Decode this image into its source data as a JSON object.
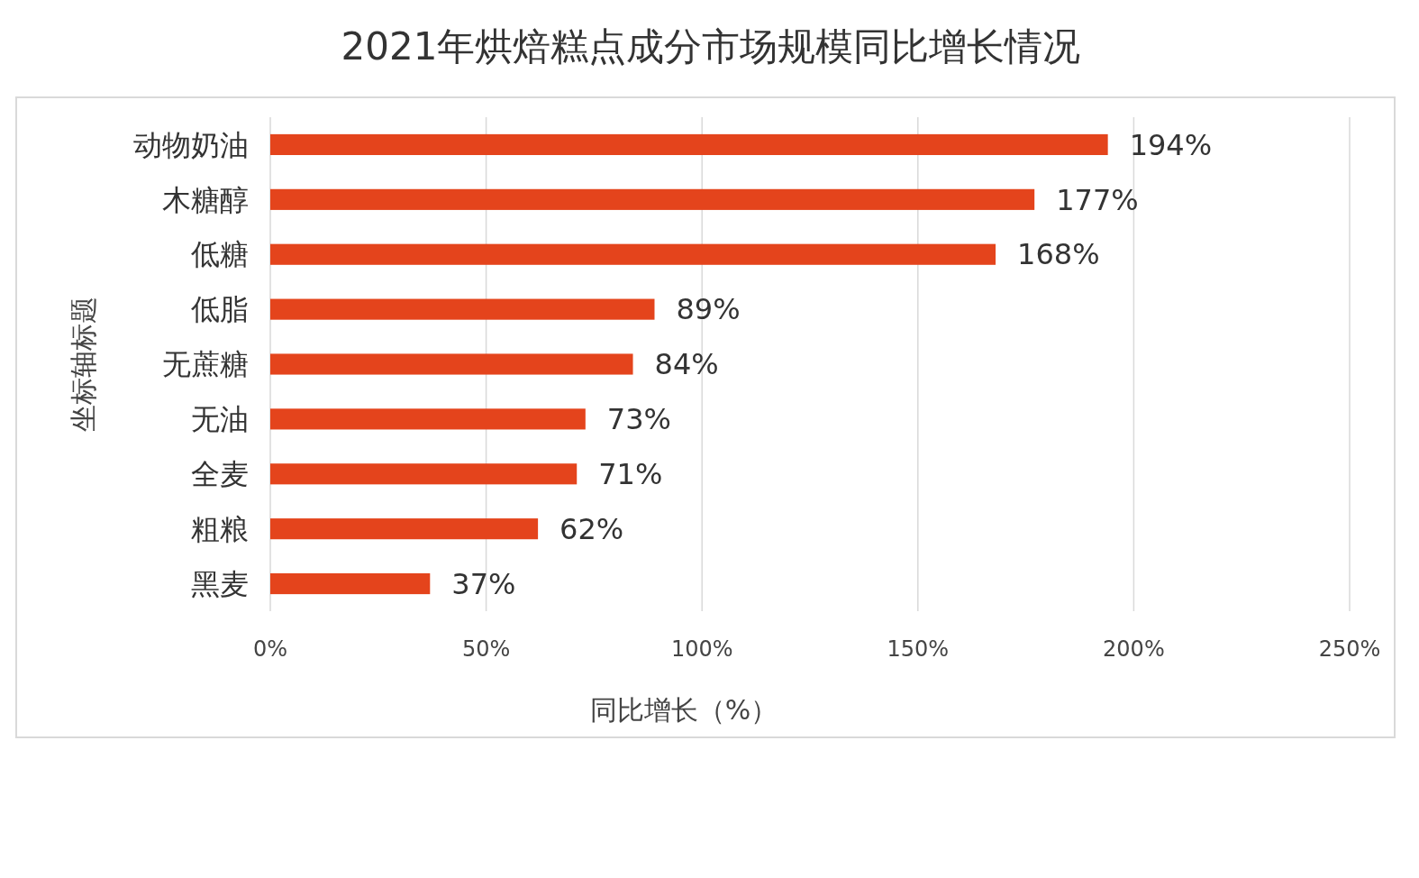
{
  "chart_data": {
    "type": "bar",
    "orientation": "horizontal",
    "title": "2021年烘焙糕点成分市场规模同比增长情况",
    "xlabel": "同比增长（%）",
    "ylabel": "坐标轴标题",
    "categories": [
      "动物奶油",
      "木糖醇",
      "低糖",
      "低脂",
      "无蔗糖",
      "无油",
      "全麦",
      "粗粮",
      "黑麦"
    ],
    "values": [
      194,
      177,
      168,
      89,
      84,
      73,
      71,
      62,
      37
    ],
    "value_labels": [
      "194%",
      "177%",
      "168%",
      "89%",
      "84%",
      "73%",
      "71%",
      "62%",
      "37%"
    ],
    "color": "#e4441c",
    "xlim": [
      0,
      250
    ],
    "xticks": [
      {
        "value": 0,
        "label": "0%"
      },
      {
        "value": 50,
        "label": "50%"
      },
      {
        "value": 100,
        "label": "100%"
      },
      {
        "value": 150,
        "label": "150%"
      },
      {
        "value": 200,
        "label": "200%"
      },
      {
        "value": 250,
        "label": "250%"
      }
    ],
    "grid": "x"
  }
}
